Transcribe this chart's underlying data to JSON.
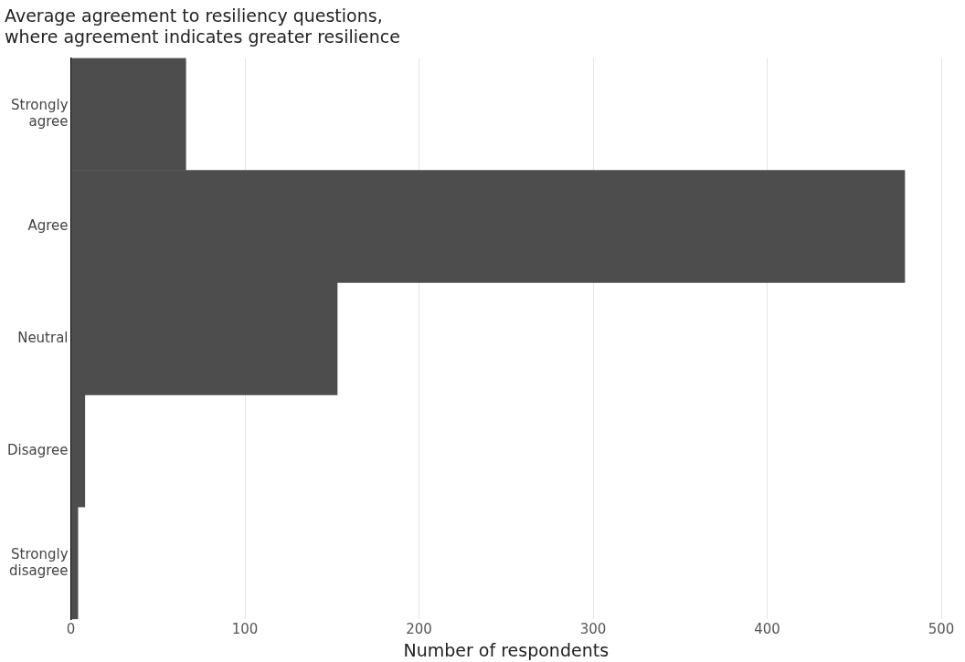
{
  "chart_data": {
    "type": "bar",
    "orientation": "horizontal",
    "title": "Average agreement to resiliency questions,\nwhere agreement indicates greater resilience",
    "xlabel": "Number of respondents",
    "categories": [
      "Strongly\nagree",
      "Agree",
      "Neutral",
      "Disagree",
      "Strongly\ndisagree"
    ],
    "values": [
      66,
      479,
      153,
      8,
      4
    ],
    "color": "#4d4d4d",
    "xlim": [
      0,
      500
    ],
    "xticks": [
      0,
      100,
      200,
      300,
      400,
      500
    ],
    "grid": "x",
    "legend": false
  }
}
